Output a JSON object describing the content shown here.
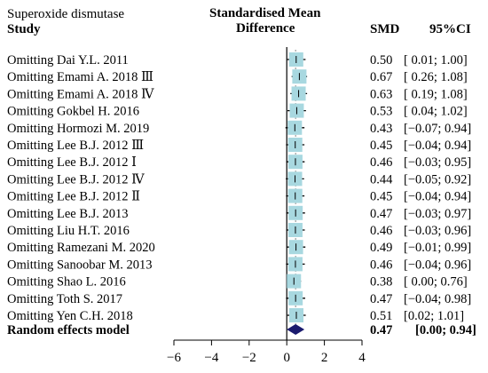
{
  "chart_data": {
    "type": "forest",
    "outcome_label": "Superoxide dismutase",
    "study_header": "Study",
    "plot_header_line1": "Standardised Mean",
    "plot_header_line2": "Difference",
    "smd_header": "SMD",
    "ci_header": "95%CI",
    "xlim": [
      -6,
      4
    ],
    "xticks": [
      "−6",
      "−4",
      "−2",
      "0",
      "2",
      "4"
    ],
    "reference_line": 0,
    "studies": [
      {
        "label": "Omitting Dai Y.L. 2011",
        "smd": 0.5,
        "lower": 0.01,
        "upper": 1.0,
        "smd_text": "0.50",
        "ci_text": "[ 0.01; 1.00]"
      },
      {
        "label": "Omitting Emami A. 2018 Ⅲ",
        "smd": 0.67,
        "lower": 0.26,
        "upper": 1.08,
        "smd_text": "0.67",
        "ci_text": "[ 0.26; 1.08]"
      },
      {
        "label": "Omitting Emami A. 2018 Ⅳ",
        "smd": 0.63,
        "lower": 0.19,
        "upper": 1.08,
        "smd_text": "0.63",
        "ci_text": "[ 0.19; 1.08]"
      },
      {
        "label": "Omitting Gokbel H. 2016",
        "smd": 0.53,
        "lower": 0.04,
        "upper": 1.02,
        "smd_text": "0.53",
        "ci_text": "[ 0.04; 1.02]"
      },
      {
        "label": "Omitting Hormozi M. 2019",
        "smd": 0.43,
        "lower": -0.07,
        "upper": 0.94,
        "smd_text": "0.43",
        "ci_text": "[−0.07; 0.94]"
      },
      {
        "label": "Omitting Lee B.J. 2012   Ⅲ",
        "smd": 0.45,
        "lower": -0.04,
        "upper": 0.94,
        "smd_text": "0.45",
        "ci_text": "[−0.04; 0.94]"
      },
      {
        "label": "Omitting Lee B.J. 2012 Ⅰ",
        "smd": 0.46,
        "lower": -0.03,
        "upper": 0.95,
        "smd_text": "0.46",
        "ci_text": "[−0.03; 0.95]"
      },
      {
        "label": "Omitting Lee B.J. 2012   Ⅳ",
        "smd": 0.44,
        "lower": -0.05,
        "upper": 0.92,
        "smd_text": "0.44",
        "ci_text": "[−0.05; 0.92]"
      },
      {
        "label": "Omitting Lee B.J. 2012 Ⅱ",
        "smd": 0.45,
        "lower": -0.04,
        "upper": 0.94,
        "smd_text": "0.45",
        "ci_text": "[−0.04; 0.94]"
      },
      {
        "label": "Omitting Lee B.J. 2013",
        "smd": 0.47,
        "lower": -0.03,
        "upper": 0.97,
        "smd_text": "0.47",
        "ci_text": "[−0.03; 0.97]"
      },
      {
        "label": "Omitting Liu H.T. 2016",
        "smd": 0.46,
        "lower": -0.03,
        "upper": 0.96,
        "smd_text": "0.46",
        "ci_text": "[−0.03; 0.96]"
      },
      {
        "label": "Omitting Ramezani M. 2020",
        "smd": 0.49,
        "lower": -0.01,
        "upper": 0.99,
        "smd_text": "0.49",
        "ci_text": "[−0.01; 0.99]"
      },
      {
        "label": "Omitting Sanoobar M. 2013",
        "smd": 0.46,
        "lower": -0.04,
        "upper": 0.96,
        "smd_text": "0.46",
        "ci_text": "[−0.04; 0.96]"
      },
      {
        "label": "Omitting Shao L. 2016",
        "smd": 0.38,
        "lower": 0.0,
        "upper": 0.76,
        "smd_text": "0.38",
        "ci_text": "[ 0.00; 0.76]"
      },
      {
        "label": "Omitting Toth S. 2017",
        "smd": 0.47,
        "lower": -0.04,
        "upper": 0.98,
        "smd_text": "0.47",
        "ci_text": "[−0.04; 0.98]"
      },
      {
        "label": "Omitting Yen C.H. 2018",
        "smd": 0.51,
        "lower": 0.02,
        "upper": 1.01,
        "smd_text": "0.51",
        "ci_text": "[0.02; 1.01]"
      }
    ],
    "summary": {
      "label": "Random effects model",
      "smd": 0.47,
      "lower": 0.0,
      "upper": 0.94,
      "smd_text": "0.47",
      "ci_text": "[0.00; 0.94]"
    },
    "colors": {
      "box": "#a8d8e0",
      "summary_diamond": "#1a1a6e",
      "line": "#000000",
      "summary_line": "#888888"
    }
  }
}
